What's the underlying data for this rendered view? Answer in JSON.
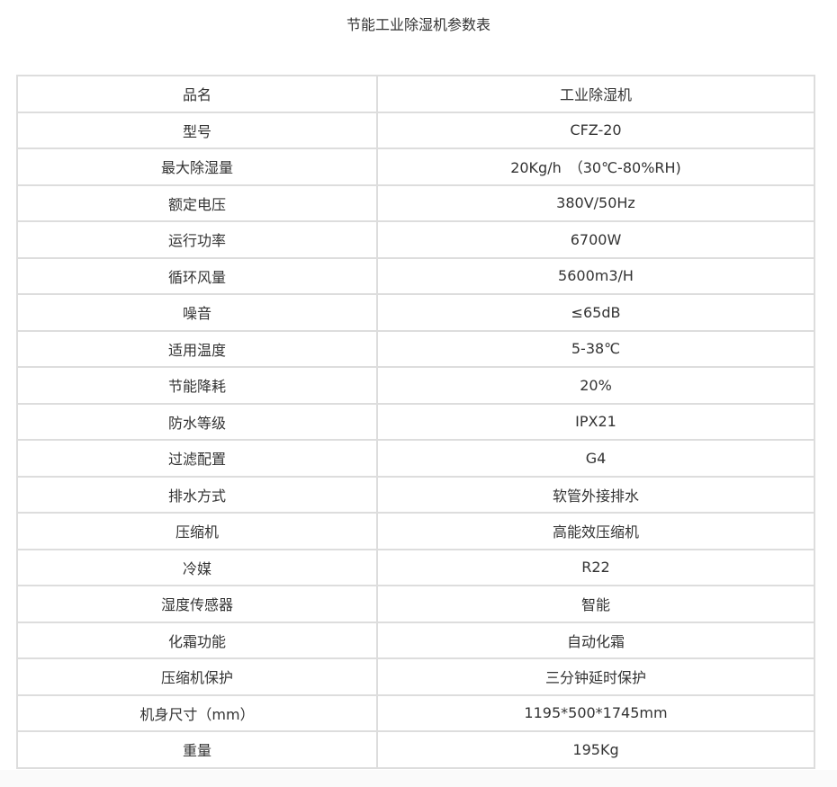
{
  "title": "节能工业除湿机参数表",
  "rows": [
    {
      "label": "品名",
      "value": "工业除湿机"
    },
    {
      "label": "型号",
      "value": "CFZ-20"
    },
    {
      "label": "最大除湿量",
      "value": "20Kg/h　（30℃-80%RH)"
    },
    {
      "label": "额定电压",
      "value": "380V/50Hz"
    },
    {
      "label": "运行功率",
      "value": "6700W"
    },
    {
      "label": "循环风量",
      "value": "5600m3/H"
    },
    {
      "label": "噪音",
      "value": "≤65dB"
    },
    {
      "label": "适用温度",
      "value": "5-38℃"
    },
    {
      "label": "节能降耗",
      "value": "20%"
    },
    {
      "label": "防水等级",
      "value": "IPX21"
    },
    {
      "label": "过滤配置",
      "value": "G4"
    },
    {
      "label": "排水方式",
      "value": "软管外接排水"
    },
    {
      "label": "压缩机",
      "value": "高能效压缩机"
    },
    {
      "label": "冷媒",
      "value": "R22"
    },
    {
      "label": "湿度传感器",
      "value": "智能"
    },
    {
      "label": "化霜功能",
      "value": "自动化霜"
    },
    {
      "label": "压缩机保护",
      "value": "三分钟延时保护"
    },
    {
      "label": "机身尺寸（mm）",
      "value": "1195*500*1745mm"
    },
    {
      "label": "重量",
      "value": "195Kg"
    }
  ]
}
